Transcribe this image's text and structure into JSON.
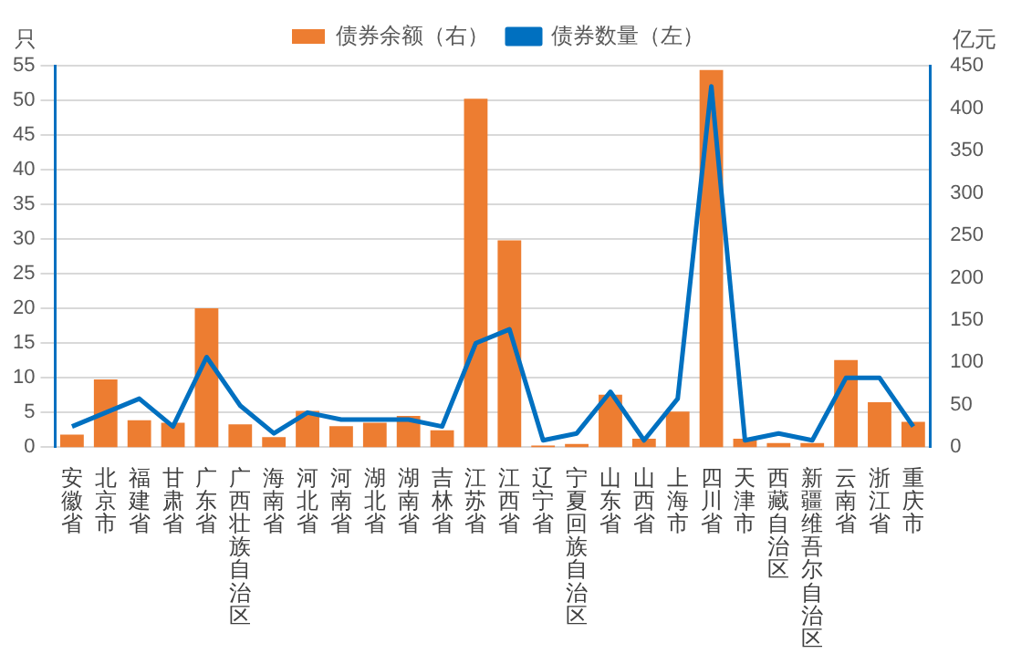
{
  "chart_data": {
    "type": "bar",
    "ylabel": "只",
    "y2label": "亿元",
    "categories": [
      "安徽省",
      "北京市",
      "福建省",
      "甘肃省",
      "广东省",
      "广西壮族自治区",
      "海南省",
      "河北省",
      "河南省",
      "湖北省",
      "湖南省",
      "吉林省",
      "江苏省",
      "江西省",
      "辽宁省",
      "宁夏回族自治区",
      "山东省",
      "山西省",
      "上海市",
      "四川省",
      "天津市",
      "西藏自治区",
      "新疆维吾尔自治区",
      "云南省",
      "浙江省",
      "重庆市"
    ],
    "series": [
      {
        "name": "债券余额（右）",
        "axis": "y2",
        "color": "#ed7d31",
        "values": [
          15,
          80,
          32,
          29,
          164,
          27,
          12,
          43,
          25,
          29,
          37,
          20,
          411,
          244,
          2,
          4,
          62,
          10,
          42,
          445,
          10,
          5,
          5,
          103,
          53,
          30
        ]
      },
      {
        "name": "债券数量（左）",
        "type": "line",
        "color": "#0070c0",
        "values": [
          3,
          5,
          7,
          3,
          13,
          6,
          2,
          5,
          4,
          4,
          4,
          3,
          15,
          17,
          1,
          2,
          8,
          1,
          7,
          52,
          1,
          2,
          1,
          10,
          10,
          3
        ]
      }
    ],
    "ylim": [
      0,
      55
    ],
    "yticks": [
      0,
      5,
      10,
      15,
      20,
      25,
      30,
      35,
      40,
      45,
      50,
      55
    ],
    "y2lim": [
      0,
      450
    ],
    "y2ticks": [
      0,
      50,
      100,
      150,
      200,
      250,
      300,
      350,
      400,
      450
    ],
    "grid": "y",
    "legend": "top",
    "marker": "none",
    "line_style": "solid"
  }
}
